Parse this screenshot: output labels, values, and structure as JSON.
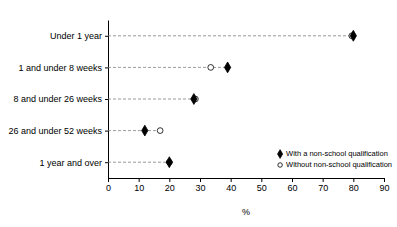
{
  "chart_data": {
    "type": "dot",
    "categories": [
      "Under 1 year",
      "1 and under 8 weeks",
      "8 and under 26 weeks",
      "26 and under 52 weeks",
      "1 year and over"
    ],
    "series": [
      {
        "name": "With a non-school qualification",
        "color": "#000000",
        "marker": "diamond",
        "values": [
          80,
          39,
          28,
          12,
          20
        ]
      },
      {
        "name": "Without non-school qualification",
        "color": "#ffffff",
        "marker": "circle",
        "values": [
          79.5,
          33.5,
          28.5,
          17,
          20
        ]
      }
    ],
    "xlim": [
      0,
      90
    ],
    "xticks": [
      0,
      10,
      20,
      30,
      40,
      50,
      60,
      70,
      80,
      90
    ],
    "x_label": "%",
    "legend": "lower right",
    "orientation": "horizontal"
  }
}
